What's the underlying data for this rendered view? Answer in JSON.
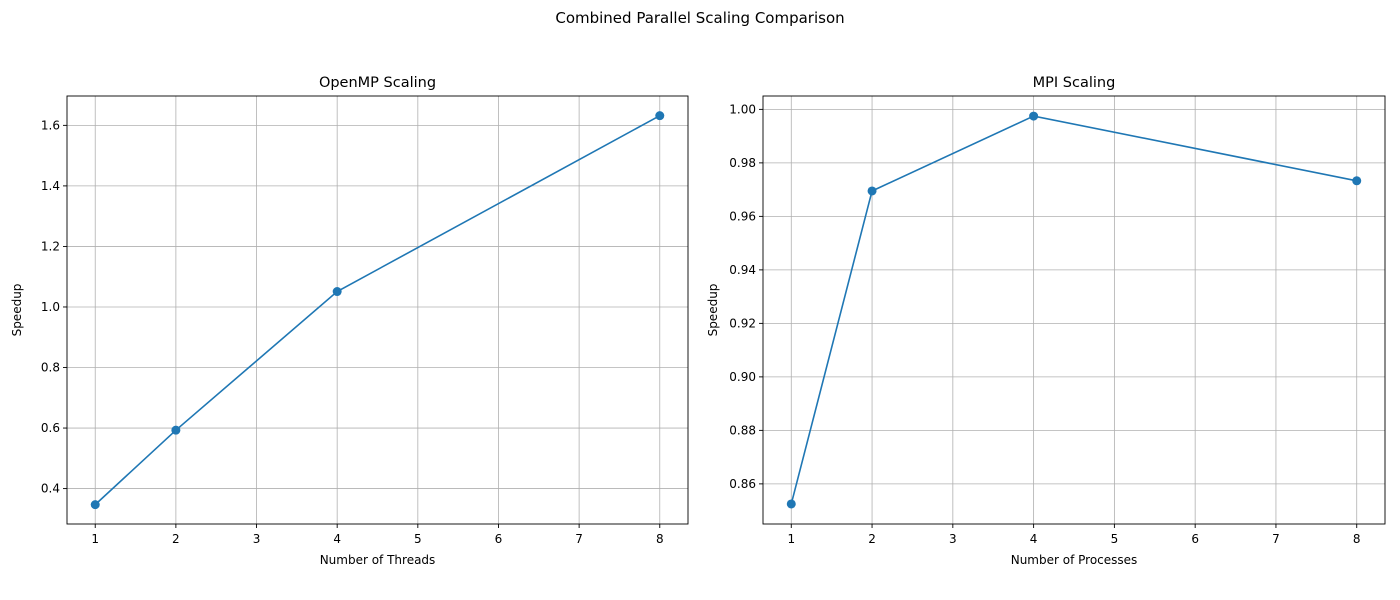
{
  "figure": {
    "suptitle": "Combined Parallel Scaling Comparison"
  },
  "colors": {
    "line": "#1f77b4",
    "grid": "#b0b0b0",
    "axes": "#000000"
  },
  "chart_data": [
    {
      "type": "line",
      "title": "OpenMP Scaling",
      "xlabel": "Number of Threads",
      "ylabel": "Speedup",
      "x": [
        1,
        2,
        4,
        8
      ],
      "y": [
        0.347,
        0.593,
        1.051,
        1.632
      ],
      "xlim": [
        0.65,
        8.35
      ],
      "ylim": [
        0.283,
        1.697
      ],
      "xticks": [
        1,
        2,
        3,
        4,
        5,
        6,
        7,
        8
      ],
      "yticks": [
        0.4,
        0.6,
        0.8,
        1.0,
        1.2,
        1.4,
        1.6
      ],
      "ytick_labels": [
        "0.4",
        "0.6",
        "0.8",
        "1.0",
        "1.2",
        "1.4",
        "1.6"
      ],
      "grid": true,
      "marker": "circle"
    },
    {
      "type": "line",
      "title": "MPI Scaling",
      "xlabel": "Number of Processes",
      "ylabel": "Speedup",
      "x": [
        1,
        2,
        4,
        8
      ],
      "y": [
        0.8525,
        0.9695,
        0.9975,
        0.9733
      ],
      "xlim": [
        0.65,
        8.35
      ],
      "ylim": [
        0.845,
        1.005
      ],
      "xticks": [
        1,
        2,
        3,
        4,
        5,
        6,
        7,
        8
      ],
      "yticks": [
        0.86,
        0.88,
        0.9,
        0.92,
        0.94,
        0.96,
        0.98,
        1.0
      ],
      "ytick_labels": [
        "0.86",
        "0.88",
        "0.90",
        "0.92",
        "0.94",
        "0.96",
        "0.98",
        "1.00"
      ],
      "grid": true,
      "marker": "circle"
    }
  ]
}
